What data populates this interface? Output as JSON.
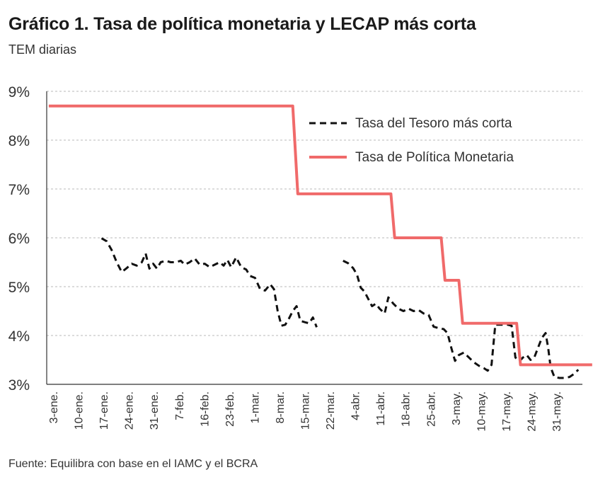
{
  "title": "Gráfico 1. Tasa de política monetaria y LECAP más corta",
  "subtitle": "TEM diarias",
  "source": "Fuente: Equilibra con base en el IAMC y el BCRA",
  "colors": {
    "policy": "#f06a6a",
    "treasury": "#111111",
    "grid": "#c8c8c8",
    "axis": "#333333"
  },
  "chart_data": {
    "type": "line",
    "xlabel": "",
    "ylabel": "",
    "ylim": [
      3,
      9
    ],
    "grid": true,
    "legend_position": "top-right",
    "y_ticks": [
      "9%",
      "8%",
      "7%",
      "6%",
      "5%",
      "4%",
      "3%"
    ],
    "x_ticks": [
      "3-ene.",
      "10-ene.",
      "17-ene.",
      "24-ene.",
      "31-ene.",
      "7-feb.",
      "16-feb.",
      "23-feb.",
      "1-mar.",
      "8-mar.",
      "15-mar.",
      "22-mar.",
      "4-abr.",
      "11-abr.",
      "18-abr.",
      "25-abr.",
      "3-may.",
      "10-may.",
      "17-may.",
      "24-may.",
      "31-may."
    ],
    "x_range": [
      -0.2,
      21.5
    ],
    "series": [
      {
        "name": "Tasa del Tesoro más corta",
        "style": "dashed",
        "segments": [
          [
            [
              1.9,
              5.99
            ],
            [
              2.1,
              5.93
            ],
            [
              2.3,
              5.75
            ],
            [
              2.5,
              5.5
            ],
            [
              2.7,
              5.3
            ],
            [
              2.9,
              5.38
            ],
            [
              3.1,
              5.47
            ],
            [
              3.3,
              5.43
            ],
            [
              3.5,
              5.5
            ],
            [
              3.65,
              5.68
            ],
            [
              3.8,
              5.37
            ],
            [
              3.95,
              5.47
            ],
            [
              4.1,
              5.37
            ],
            [
              4.25,
              5.5
            ],
            [
              4.45,
              5.53
            ],
            [
              4.65,
              5.5
            ],
            [
              4.85,
              5.5
            ],
            [
              5.05,
              5.53
            ],
            [
              5.2,
              5.45
            ],
            [
              5.4,
              5.5
            ],
            [
              5.6,
              5.58
            ],
            [
              5.8,
              5.45
            ],
            [
              6.0,
              5.47
            ],
            [
              6.2,
              5.4
            ],
            [
              6.4,
              5.45
            ],
            [
              6.6,
              5.5
            ],
            [
              6.75,
              5.43
            ],
            [
              6.9,
              5.55
            ],
            [
              7.05,
              5.4
            ],
            [
              7.25,
              5.6
            ],
            [
              7.45,
              5.4
            ],
            [
              7.65,
              5.35
            ],
            [
              7.8,
              5.22
            ],
            [
              8.0,
              5.18
            ],
            [
              8.2,
              4.95
            ],
            [
              8.4,
              4.92
            ],
            [
              8.6,
              5.05
            ],
            [
              8.75,
              4.95
            ],
            [
              8.9,
              4.5
            ],
            [
              9.05,
              4.2
            ],
            [
              9.2,
              4.22
            ],
            [
              9.35,
              4.35
            ],
            [
              9.5,
              4.5
            ],
            [
              9.65,
              4.6
            ],
            [
              9.8,
              4.3
            ],
            [
              10.0,
              4.27
            ],
            [
              10.15,
              4.25
            ],
            [
              10.3,
              4.37
            ],
            [
              10.45,
              4.17
            ]
          ],
          [
            [
              11.5,
              5.53
            ],
            [
              11.7,
              5.48
            ],
            [
              11.9,
              5.38
            ],
            [
              12.05,
              5.25
            ],
            [
              12.2,
              4.98
            ],
            [
              12.35,
              4.9
            ],
            [
              12.5,
              4.75
            ],
            [
              12.65,
              4.6
            ],
            [
              12.8,
              4.65
            ],
            [
              12.95,
              4.55
            ],
            [
              13.15,
              4.45
            ],
            [
              13.3,
              4.78
            ],
            [
              13.5,
              4.65
            ],
            [
              13.7,
              4.55
            ],
            [
              13.9,
              4.5
            ],
            [
              14.1,
              4.55
            ],
            [
              14.3,
              4.5
            ],
            [
              14.5,
              4.52
            ],
            [
              14.7,
              4.45
            ],
            [
              14.9,
              4.42
            ],
            [
              15.1,
              4.18
            ],
            [
              15.3,
              4.15
            ],
            [
              15.5,
              4.13
            ],
            [
              15.65,
              4.05
            ],
            [
              15.8,
              3.75
            ],
            [
              15.95,
              3.48
            ],
            [
              16.1,
              3.6
            ],
            [
              16.3,
              3.65
            ],
            [
              16.5,
              3.55
            ],
            [
              16.7,
              3.45
            ],
            [
              16.9,
              3.38
            ],
            [
              17.1,
              3.33
            ],
            [
              17.25,
              3.28
            ],
            [
              17.4,
              3.4
            ],
            [
              17.55,
              4.22
            ],
            [
              17.8,
              4.22
            ],
            [
              18.05,
              4.22
            ],
            [
              18.2,
              4.2
            ],
            [
              18.35,
              3.55
            ],
            [
              18.5,
              3.47
            ],
            [
              18.65,
              3.55
            ],
            [
              18.8,
              3.6
            ],
            [
              18.95,
              3.5
            ],
            [
              19.1,
              3.55
            ],
            [
              19.25,
              3.75
            ],
            [
              19.4,
              3.95
            ],
            [
              19.55,
              4.05
            ],
            [
              19.65,
              3.75
            ],
            [
              19.75,
              3.35
            ],
            [
              19.9,
              3.15
            ],
            [
              20.1,
              3.13
            ],
            [
              20.3,
              3.13
            ],
            [
              20.5,
              3.15
            ],
            [
              20.7,
              3.22
            ],
            [
              20.85,
              3.3
            ]
          ]
        ]
      },
      {
        "name": "Tasa de Política Monetaria",
        "style": "solid",
        "segments": [
          [
            [
              -0.2,
              8.7
            ],
            [
              9.5,
              8.7
            ],
            [
              9.7,
              6.9
            ],
            [
              13.4,
              6.9
            ],
            [
              13.55,
              6.0
            ],
            [
              15.4,
              6.0
            ],
            [
              15.55,
              5.13
            ],
            [
              16.1,
              5.13
            ],
            [
              16.25,
              4.25
            ],
            [
              18.4,
              4.25
            ],
            [
              18.55,
              3.4
            ],
            [
              21.4,
              3.4
            ]
          ]
        ]
      }
    ]
  }
}
